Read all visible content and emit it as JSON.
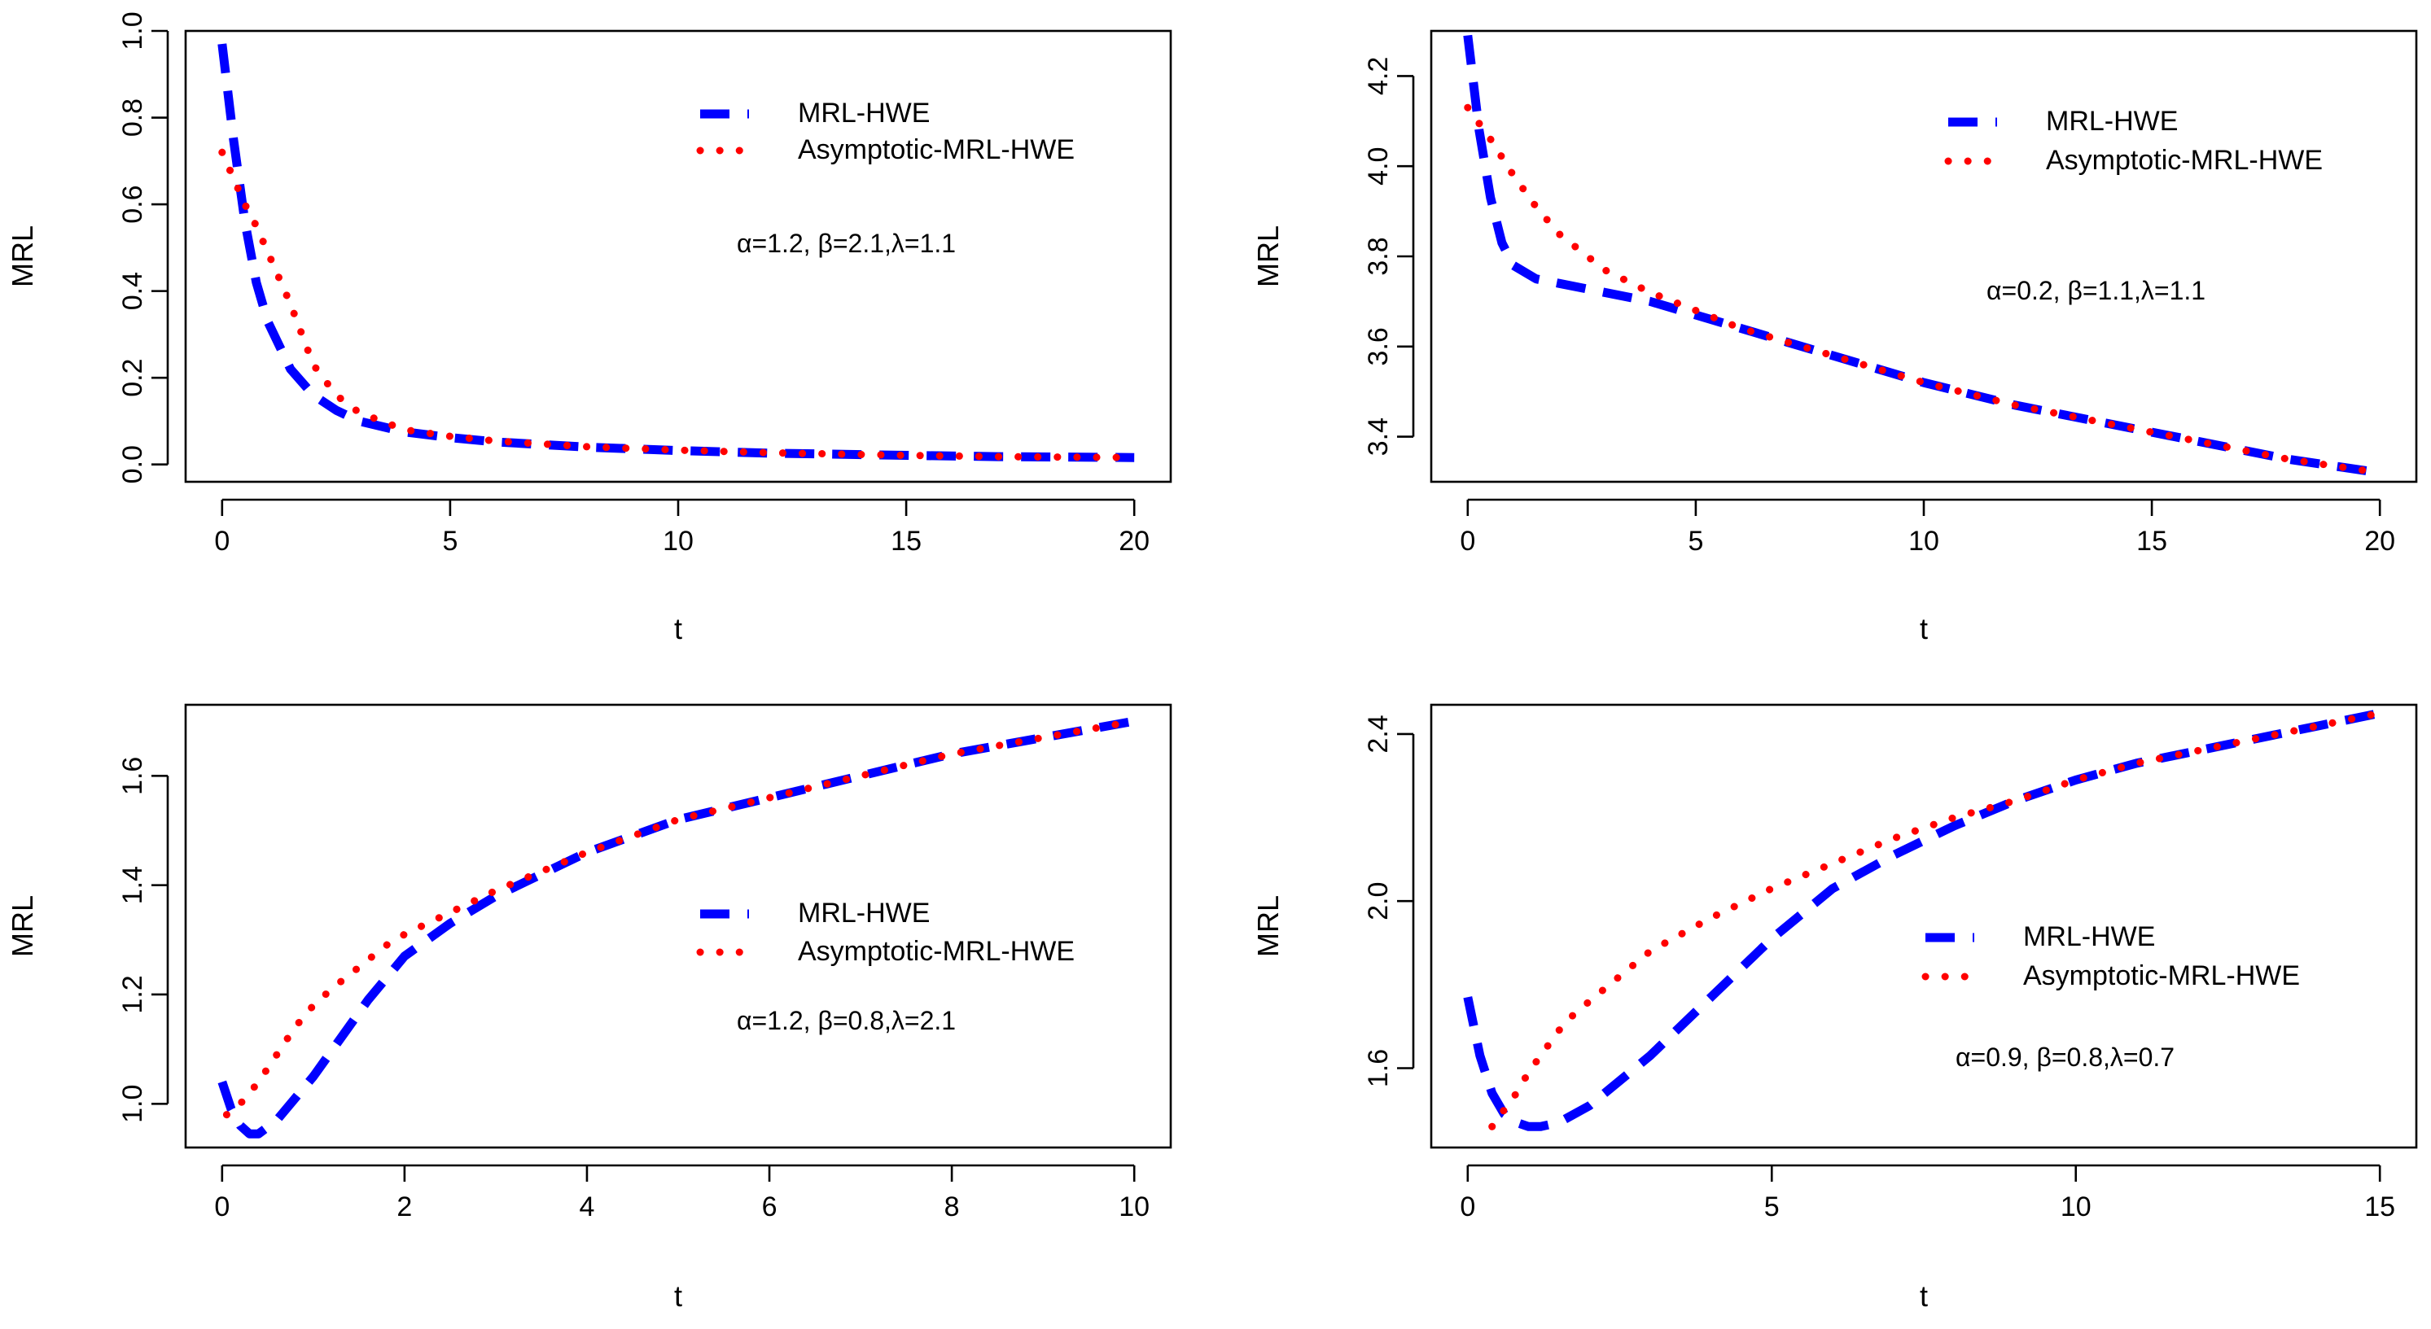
{
  "chart_data": [
    {
      "type": "line",
      "title": "",
      "xlabel": "t",
      "ylabel": "MRL",
      "xlim": [
        -0.8,
        20.8
      ],
      "ylim": [
        -0.04,
        1.0
      ],
      "xticks": [
        0,
        5,
        10,
        15,
        20
      ],
      "yticks": [
        0.0,
        0.2,
        0.4,
        0.6,
        0.8,
        1.0
      ],
      "xtick_labels": [
        "0",
        "5",
        "10",
        "15",
        "20"
      ],
      "ytick_labels": [
        "0.0",
        "0.2",
        "0.4",
        "0.6",
        "0.8",
        "1.0"
      ],
      "legend_position": "top-right",
      "annotation": "α=1.2, β=2.1,λ=1.1",
      "series": [
        {
          "name": "MRL-HWE",
          "style": "dashed",
          "color": "#0000ff",
          "x": [
            0,
            0.25,
            0.5,
            0.75,
            1.0,
            1.5,
            2.0,
            2.5,
            3.0,
            4.0,
            5.0,
            6.0,
            8.0,
            10.0,
            12.0,
            15.0,
            17.0,
            20.0
          ],
          "y": [
            0.97,
            0.75,
            0.56,
            0.42,
            0.33,
            0.22,
            0.16,
            0.125,
            0.1,
            0.075,
            0.062,
            0.052,
            0.04,
            0.032,
            0.026,
            0.021,
            0.018,
            0.016
          ]
        },
        {
          "name": "Asymptotic-MRL-HWE",
          "style": "dotted",
          "color": "#ff0000",
          "x": [
            0,
            0.25,
            0.5,
            0.75,
            1.0,
            1.5,
            2.0,
            2.5,
            3.0,
            4.0,
            5.0,
            6.0,
            8.0,
            10.0,
            12.0,
            15.0,
            17.0,
            20.0
          ],
          "y": [
            0.72,
            0.66,
            0.6,
            0.55,
            0.49,
            0.37,
            0.23,
            0.16,
            0.12,
            0.08,
            0.065,
            0.054,
            0.041,
            0.033,
            0.027,
            0.021,
            0.018,
            0.016
          ]
        }
      ]
    },
    {
      "type": "line",
      "title": "",
      "xlabel": "t",
      "ylabel": "MRL",
      "xlim": [
        -0.8,
        20.8
      ],
      "ylim": [
        3.3,
        4.3
      ],
      "xticks": [
        0,
        5,
        10,
        15,
        20
      ],
      "yticks": [
        3.4,
        3.6,
        3.8,
        4.0,
        4.2
      ],
      "xtick_labels": [
        "0",
        "5",
        "10",
        "15",
        "20"
      ],
      "ytick_labels": [
        "3.4",
        "3.6",
        "3.8",
        "4.0",
        "4.2"
      ],
      "legend_position": "top-right",
      "annotation": "α=0.2, β=1.1,λ=1.1",
      "series": [
        {
          "name": "MRL-HWE",
          "style": "dashed",
          "color": "#0000ff",
          "x": [
            0,
            0.25,
            0.5,
            0.75,
            1.0,
            1.5,
            2.0,
            3.0,
            4.0,
            5.0,
            6.0,
            7.0,
            8.0,
            10.0,
            12.0,
            14.0,
            16.0,
            18.0,
            20.0
          ],
          "y": [
            4.29,
            4.08,
            3.93,
            3.83,
            3.78,
            3.75,
            3.74,
            3.72,
            3.7,
            3.67,
            3.64,
            3.61,
            3.58,
            3.52,
            3.47,
            3.43,
            3.39,
            3.35,
            3.32
          ]
        },
        {
          "name": "Asymptotic-MRL-HWE",
          "style": "dotted",
          "color": "#ff0000",
          "x": [
            0,
            0.5,
            1.0,
            1.5,
            2.0,
            3.0,
            4.0,
            5.0,
            6.0,
            7.0,
            8.0,
            10.0,
            12.0,
            14.0,
            16.0,
            18.0,
            20.0
          ],
          "y": [
            4.13,
            4.06,
            3.98,
            3.91,
            3.85,
            3.77,
            3.72,
            3.68,
            3.64,
            3.61,
            3.58,
            3.52,
            3.47,
            3.43,
            3.39,
            3.35,
            3.32
          ]
        }
      ]
    },
    {
      "type": "line",
      "title": "",
      "xlabel": "t",
      "ylabel": "MRL",
      "xlim": [
        -0.4,
        10.4
      ],
      "ylim": [
        0.92,
        1.73
      ],
      "xticks": [
        0,
        2,
        4,
        6,
        8,
        10
      ],
      "yticks": [
        1.0,
        1.2,
        1.4,
        1.6
      ],
      "xtick_labels": [
        "0",
        "2",
        "4",
        "6",
        "8",
        "10"
      ],
      "ytick_labels": [
        "1.0",
        "1.2",
        "1.4",
        "1.6"
      ],
      "legend_position": "center-right",
      "annotation": "α=1.2, β=0.8,λ=2.1",
      "series": [
        {
          "name": "MRL-HWE",
          "style": "dashed",
          "color": "#0000ff",
          "x": [
            0,
            0.1,
            0.2,
            0.3,
            0.4,
            0.6,
            0.8,
            1.0,
            1.3,
            1.6,
            2.0,
            2.5,
            3.0,
            4.0,
            5.0,
            6.0,
            7.0,
            8.0,
            9.0,
            10.0
          ],
          "y": [
            1.04,
            0.99,
            0.96,
            0.945,
            0.945,
            0.97,
            1.01,
            1.05,
            1.12,
            1.19,
            1.27,
            1.33,
            1.38,
            1.46,
            1.52,
            1.56,
            1.6,
            1.64,
            1.67,
            1.7
          ]
        },
        {
          "name": "Asymptotic-MRL-HWE",
          "style": "dotted",
          "color": "#ff0000",
          "x": [
            0.05,
            0.2,
            0.4,
            0.6,
            0.8,
            1.0,
            1.2,
            1.5,
            1.8,
            2.0,
            2.5,
            3.0,
            4.0,
            5.0,
            6.0,
            7.0,
            8.0,
            9.0,
            10.0
          ],
          "y": [
            0.98,
            1.0,
            1.04,
            1.09,
            1.14,
            1.18,
            1.21,
            1.25,
            1.29,
            1.31,
            1.35,
            1.39,
            1.46,
            1.52,
            1.56,
            1.6,
            1.64,
            1.67,
            1.7
          ]
        }
      ]
    },
    {
      "type": "line",
      "title": "",
      "xlabel": "t",
      "ylabel": "MRL",
      "xlim": [
        -0.6,
        15.6
      ],
      "ylim": [
        1.41,
        2.47
      ],
      "xticks": [
        0,
        5,
        10,
        15
      ],
      "yticks": [
        1.6,
        2.0,
        2.4
      ],
      "xtick_labels": [
        "0",
        "5",
        "10",
        "15"
      ],
      "ytick_labels": [
        "1.6",
        "2.0",
        "2.4"
      ],
      "legend_position": "center-right",
      "annotation": "α=0.9, β=0.8,λ=0.7",
      "series": [
        {
          "name": "MRL-HWE",
          "style": "dashed",
          "color": "#0000ff",
          "x": [
            0,
            0.2,
            0.4,
            0.6,
            0.8,
            1.0,
            1.2,
            1.5,
            2.0,
            3.0,
            4.0,
            5.0,
            6.0,
            7.0,
            8.0,
            9.0,
            10.0,
            11.0,
            12.0,
            13.0,
            14.0,
            15.0
          ],
          "y": [
            1.77,
            1.63,
            1.54,
            1.49,
            1.47,
            1.46,
            1.46,
            1.47,
            1.51,
            1.63,
            1.77,
            1.91,
            2.03,
            2.11,
            2.18,
            2.24,
            2.29,
            2.33,
            2.36,
            2.39,
            2.42,
            2.45
          ]
        },
        {
          "name": "Asymptotic-MRL-HWE",
          "style": "dotted",
          "color": "#ff0000",
          "x": [
            0.4,
            0.6,
            0.8,
            1.0,
            1.3,
            1.6,
            2.0,
            2.5,
            3.0,
            4.0,
            5.0,
            6.0,
            7.0,
            8.0,
            9.0,
            10.0,
            11.0,
            12.0,
            13.0,
            14.0,
            15.0
          ],
          "y": [
            1.46,
            1.5,
            1.54,
            1.59,
            1.65,
            1.71,
            1.76,
            1.82,
            1.88,
            1.96,
            2.03,
            2.09,
            2.15,
            2.2,
            2.24,
            2.29,
            2.33,
            2.36,
            2.39,
            2.42,
            2.45
          ]
        }
      ]
    }
  ],
  "colors": {
    "blue": "#0000ff",
    "red": "#ff0000"
  }
}
